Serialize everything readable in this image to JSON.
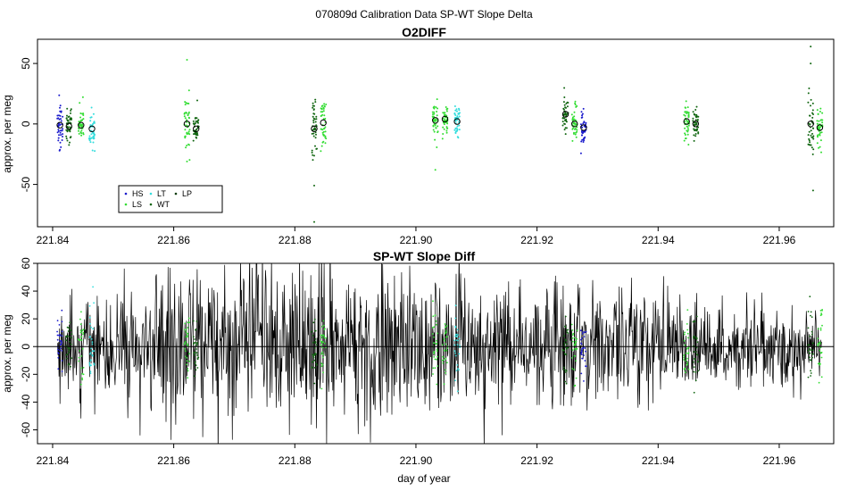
{
  "page_title": "070809d   Calibration Data SP-WT Slope Delta",
  "colors": {
    "HS": "#1a1acc",
    "LS": "#33dd33",
    "LT": "#33dddd",
    "WT": "#116611",
    "LP": "#0a3a0a",
    "diff_line": "#000000"
  },
  "chart_data": [
    {
      "type": "scatter",
      "title": "O2DIFF",
      "xlabel": "",
      "ylabel": "approx. per meg",
      "xlim": [
        221.8375,
        221.969
      ],
      "ylim": [
        -85,
        70
      ],
      "x_ticks": [
        221.84,
        221.86,
        221.88,
        221.9,
        221.92,
        221.94,
        221.96
      ],
      "x_tick_labels": [
        "221.84",
        "221.86",
        "221.88",
        "221.90",
        "221.92",
        "221.94",
        "221.96"
      ],
      "y_ticks": [
        -50,
        0,
        50
      ],
      "y_tick_labels": [
        "-50",
        "0",
        "50"
      ],
      "grid": false,
      "legend_position": "bottom-left",
      "legend": [
        {
          "key": "HS",
          "label": "HS"
        },
        {
          "key": "LS",
          "label": "LS"
        },
        {
          "key": "LT",
          "label": "LT"
        },
        {
          "key": "WT",
          "label": "WT"
        },
        {
          "key": "LP",
          "label": "LP"
        }
      ],
      "groups": [
        {
          "key": "HS",
          "x": 221.8412,
          "spread": 6.62,
          "mean": -1
        },
        {
          "key": "WT",
          "x": 221.8427,
          "spread": 4.5,
          "mean": -2
        },
        {
          "key": "LS",
          "x": 221.8447,
          "spread": 4.0,
          "mean": -1
        },
        {
          "key": "LT",
          "x": 221.8465,
          "spread": 5.5,
          "mean": -4
        },
        {
          "key": "LS",
          "x": 221.8622,
          "spread": 9.25,
          "mean": 0
        },
        {
          "key": "WT",
          "x": 221.8637,
          "spread": 3.7,
          "mean": -4
        },
        {
          "key": "WT",
          "x": 221.8832,
          "spread": 10.55,
          "mean": -4
        },
        {
          "key": "LS",
          "x": 221.8847,
          "spread": 8.25,
          "mean": 1
        },
        {
          "key": "LS",
          "x": 221.9032,
          "spread": 5.25,
          "mean": 3
        },
        {
          "key": "LS",
          "x": 221.9048,
          "spread": 4.0,
          "mean": 4
        },
        {
          "key": "LT",
          "x": 221.9068,
          "spread": 4.75,
          "mean": 2
        },
        {
          "key": "WT",
          "x": 221.9247,
          "spread": 5.5,
          "mean": 8
        },
        {
          "key": "LS",
          "x": 221.9262,
          "spread": 4.5,
          "mean": 0
        },
        {
          "key": "HS",
          "x": 221.9277,
          "spread": 5.0,
          "mean": -3
        },
        {
          "key": "LS",
          "x": 221.9447,
          "spread": 5.0,
          "mean": 2
        },
        {
          "key": "WT",
          "x": 221.9462,
          "spread": 4.5,
          "mean": 0
        },
        {
          "key": "WT",
          "x": 221.9652,
          "spread": 8.75,
          "mean": 0
        },
        {
          "key": "LS",
          "x": 221.9667,
          "spread": 5.0,
          "mean": -3
        }
      ],
      "outliers": [
        {
          "key": "WT",
          "x": 221.8832,
          "y": -81
        },
        {
          "key": "WT",
          "x": 221.8832,
          "y": -51
        },
        {
          "key": "LS",
          "x": 221.8622,
          "y": 53
        },
        {
          "key": "WT",
          "x": 221.9652,
          "y": 64
        },
        {
          "key": "WT",
          "x": 221.9652,
          "y": 50
        },
        {
          "key": "WT",
          "x": 221.9656,
          "y": -55
        },
        {
          "key": "LS",
          "x": 221.9032,
          "y": -38
        }
      ]
    },
    {
      "type": "line",
      "title": "SP-WT Slope Diff",
      "xlabel": "day of year",
      "ylabel": "approx. per meg",
      "xlim": [
        221.8375,
        221.969
      ],
      "ylim": [
        -70,
        60
      ],
      "x_ticks": [
        221.84,
        221.86,
        221.88,
        221.9,
        221.92,
        221.94,
        221.96
      ],
      "x_tick_labels": [
        "221.84",
        "221.86",
        "221.88",
        "221.90",
        "221.92",
        "221.94",
        "221.96"
      ],
      "y_ticks": [
        -60,
        -40,
        -20,
        0,
        20,
        40,
        60
      ],
      "y_tick_labels": [
        "-60",
        "-40",
        "-20",
        "0",
        "20",
        "40",
        "60"
      ],
      "reference_line_y": 0,
      "grid": false,
      "x_range": [
        221.8408,
        221.967
      ],
      "amplitude_profile": [
        {
          "x": 221.8408,
          "sd": 20
        },
        {
          "x": 221.848,
          "sd": 20
        },
        {
          "x": 221.856,
          "sd": 26
        },
        {
          "x": 221.868,
          "sd": 30
        },
        {
          "x": 221.878,
          "sd": 34
        },
        {
          "x": 221.888,
          "sd": 26
        },
        {
          "x": 221.895,
          "sd": 30
        },
        {
          "x": 221.905,
          "sd": 26
        },
        {
          "x": 221.915,
          "sd": 22
        },
        {
          "x": 221.925,
          "sd": 24
        },
        {
          "x": 221.935,
          "sd": 22
        },
        {
          "x": 221.945,
          "sd": 16
        },
        {
          "x": 221.955,
          "sd": 14
        },
        {
          "x": 221.967,
          "sd": 14
        }
      ]
    }
  ]
}
